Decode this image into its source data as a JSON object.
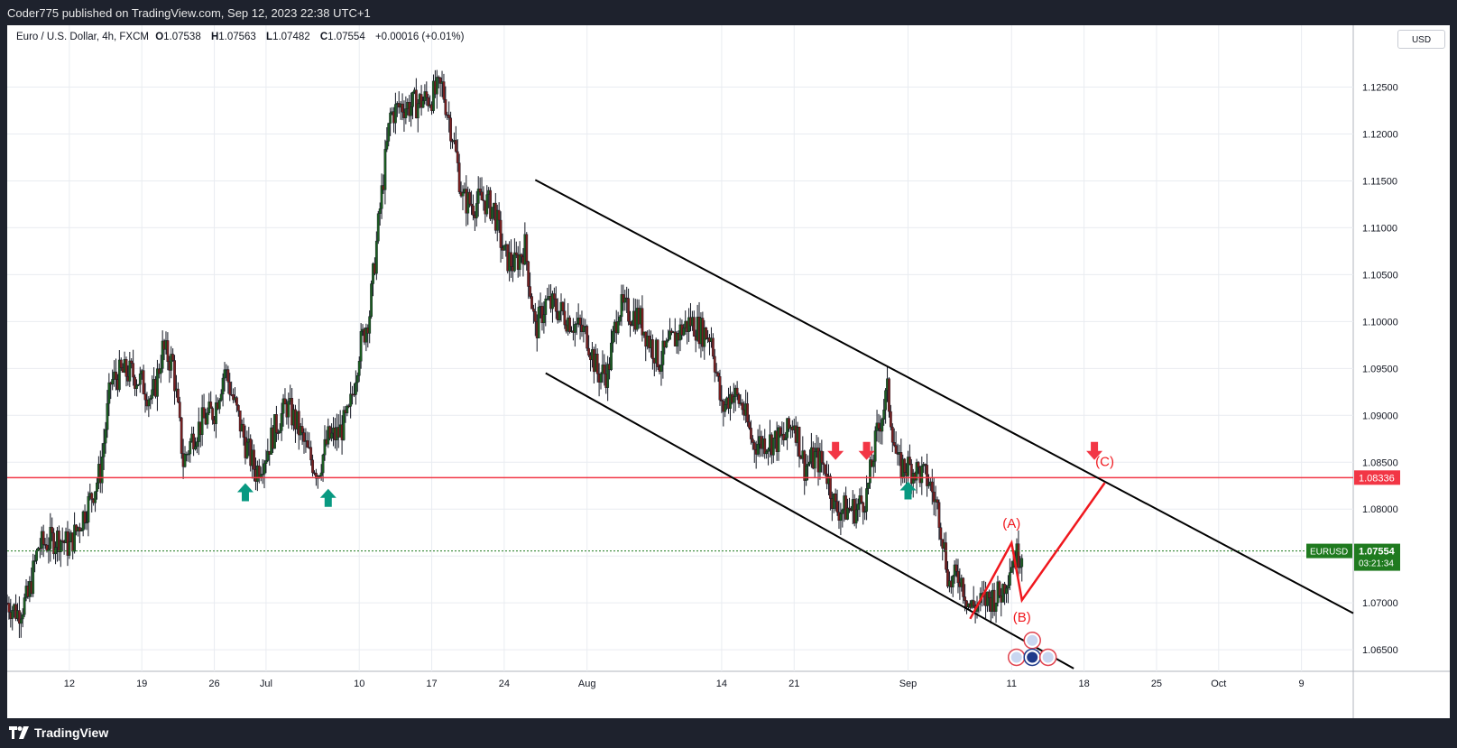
{
  "header": {
    "publisher_line": "Coder775 published on TradingView.com, Sep 12, 2023 22:38 UTC+1"
  },
  "legend": {
    "symbol": "Euro / U.S. Dollar, 4h, FXCM",
    "open_label": "O",
    "open": "1.07538",
    "high_label": "H",
    "high": "1.07563",
    "low_label": "L",
    "low": "1.07482",
    "close_label": "C",
    "close": "1.07554",
    "change": "+0.00016 (+0.01%)"
  },
  "currency_button": "USD",
  "footer": {
    "brand": "TradingView"
  },
  "colors": {
    "background": "#ffffff",
    "frame": "#1e222d",
    "grid": "#e9ecf1",
    "up_candle": "#1b5e20",
    "down_candle": "#7a1f1f",
    "support_line": "#f23645",
    "channel": "#000000",
    "wave": "#f0181e",
    "arrow_up": "#089981",
    "arrow_down": "#f23645",
    "price_badge": "#1f7a1f"
  },
  "chart_data": {
    "type": "candlestick",
    "title": "",
    "x_ticks": [
      "12",
      "19",
      "26",
      "Jul",
      "10",
      "17",
      "24",
      "Aug",
      "14",
      "21",
      "Sep",
      "11",
      "18",
      "25",
      "Oct",
      "9"
    ],
    "y_ticks": [
      "1.12500",
      "1.12000",
      "1.11500",
      "1.11000",
      "1.10500",
      "1.10000",
      "1.09500",
      "1.09000",
      "1.08500",
      "1.08000",
      "1.07500",
      "1.07000",
      "1.06500"
    ],
    "ylim": [
      1.0628,
      1.1289
    ],
    "x_range_days": [
      "2023-06-06",
      "2023-10-14"
    ],
    "close_path": [
      [
        "2023-06-06",
        1.07
      ],
      [
        "2023-06-07",
        1.069
      ],
      [
        "2023-06-08",
        1.0705
      ],
      [
        "2023-06-09",
        1.076
      ],
      [
        "2023-06-10",
        1.0765
      ],
      [
        "2023-06-11",
        1.077
      ],
      [
        "2023-06-12",
        1.076
      ],
      [
        "2023-06-13",
        1.0785
      ],
      [
        "2023-06-14",
        1.081
      ],
      [
        "2023-06-15",
        1.084
      ],
      [
        "2023-06-16",
        1.0935
      ],
      [
        "2023-06-17",
        1.0945
      ],
      [
        "2023-06-18",
        1.0945
      ],
      [
        "2023-06-19",
        1.0935
      ],
      [
        "2023-06-20",
        1.0915
      ],
      [
        "2023-06-21",
        1.097
      ],
      [
        "2023-06-22",
        1.0955
      ],
      [
        "2023-06-23",
        1.085
      ],
      [
        "2023-06-24",
        1.088
      ],
      [
        "2023-06-25",
        1.0895
      ],
      [
        "2023-06-26",
        1.0905
      ],
      [
        "2023-06-27",
        1.095
      ],
      [
        "2023-06-28",
        1.091
      ],
      [
        "2023-06-29",
        1.087
      ],
      [
        "2023-06-30",
        1.084
      ],
      [
        "2023-07-01",
        1.086
      ],
      [
        "2023-07-02",
        1.089
      ],
      [
        "2023-07-03",
        1.091
      ],
      [
        "2023-07-04",
        1.089
      ],
      [
        "2023-07-05",
        1.086
      ],
      [
        "2023-07-06",
        1.084
      ],
      [
        "2023-07-07",
        1.0875
      ],
      [
        "2023-07-08",
        1.088
      ],
      [
        "2023-07-09",
        1.09
      ],
      [
        "2023-07-10",
        1.097
      ],
      [
        "2023-07-11",
        1.101
      ],
      [
        "2023-07-12",
        1.112
      ],
      [
        "2023-07-13",
        1.122
      ],
      [
        "2023-07-14",
        1.123
      ],
      [
        "2023-07-15",
        1.123
      ],
      [
        "2023-07-16",
        1.1235
      ],
      [
        "2023-07-17",
        1.124
      ],
      [
        "2023-07-18",
        1.125
      ],
      [
        "2023-07-19",
        1.12
      ],
      [
        "2023-07-20",
        1.113
      ],
      [
        "2023-07-21",
        1.1125
      ],
      [
        "2023-07-22",
        1.113
      ],
      [
        "2023-07-23",
        1.112
      ],
      [
        "2023-07-24",
        1.107
      ],
      [
        "2023-07-25",
        1.106
      ],
      [
        "2023-07-26",
        1.108
      ],
      [
        "2023-07-27",
        1.099
      ],
      [
        "2023-07-28",
        1.102
      ],
      [
        "2023-07-29",
        1.1015
      ],
      [
        "2023-07-30",
        1.1005
      ],
      [
        "2023-07-31",
        1.0995
      ],
      [
        "2023-08-01",
        1.0985
      ],
      [
        "2023-08-02",
        1.0945
      ],
      [
        "2023-08-03",
        1.0945
      ],
      [
        "2023-08-04",
        1.1015
      ],
      [
        "2023-08-05",
        1.101
      ],
      [
        "2023-08-06",
        1.1005
      ],
      [
        "2023-08-07",
        1.098
      ],
      [
        "2023-08-08",
        1.0958
      ],
      [
        "2023-08-09",
        1.0975
      ],
      [
        "2023-08-10",
        1.099
      ],
      [
        "2023-08-11",
        1.1
      ],
      [
        "2023-08-12",
        1.099
      ],
      [
        "2023-08-13",
        1.0985
      ],
      [
        "2023-08-14",
        1.0905
      ],
      [
        "2023-08-15",
        1.0925
      ],
      [
        "2023-08-16",
        1.091
      ],
      [
        "2023-08-17",
        1.087
      ],
      [
        "2023-08-18",
        1.0872
      ],
      [
        "2023-08-19",
        1.0873
      ],
      [
        "2023-08-20",
        1.0874
      ],
      [
        "2023-08-21",
        1.0895
      ],
      [
        "2023-08-22",
        1.0845
      ],
      [
        "2023-08-23",
        1.0855
      ],
      [
        "2023-08-24",
        1.0845
      ],
      [
        "2023-08-25",
        1.08
      ],
      [
        "2023-08-26",
        1.08
      ],
      [
        "2023-08-27",
        1.08
      ],
      [
        "2023-08-28",
        1.0815
      ],
      [
        "2023-08-29",
        1.088
      ],
      [
        "2023-08-30",
        1.0925
      ],
      [
        "2023-08-31",
        1.0845
      ],
      [
        "2023-09-01",
        1.0845
      ],
      [
        "2023-09-02",
        1.084
      ],
      [
        "2023-09-03",
        1.083
      ],
      [
        "2023-09-04",
        1.0795
      ],
      [
        "2023-09-05",
        1.072
      ],
      [
        "2023-09-06",
        1.073
      ],
      [
        "2023-09-07",
        1.0695
      ],
      [
        "2023-09-08",
        1.07
      ],
      [
        "2023-09-09",
        1.0705
      ],
      [
        "2023-09-10",
        1.071
      ],
      [
        "2023-09-11",
        1.0745
      ],
      [
        "2023-09-12",
        1.0755
      ]
    ],
    "period_high": 1.1275,
    "period_low": 1.0662,
    "horizontal_levels": [
      {
        "price": 1.08336,
        "label": "1.08336",
        "color": "#f23645"
      },
      {
        "price": 1.07554,
        "label": "1.07554",
        "style": "dotted",
        "color": "#1f7a1f"
      }
    ],
    "price_badge": {
      "symbol": "EURUSD",
      "price": "1.07554",
      "countdown": "03:21:34"
    },
    "channel_lines": [
      {
        "from": [
          "2023-07-27",
          1.1151
        ],
        "to": [
          "2023-10-14",
          1.0689
        ]
      },
      {
        "from": [
          "2023-07-28",
          1.0945
        ],
        "to": [
          "2023-09-17",
          1.063
        ]
      }
    ],
    "wave_path": [
      [
        "2023-09-07",
        1.0683
      ],
      [
        "2023-09-11",
        1.0764
      ],
      [
        "2023-09-12",
        1.0703
      ],
      [
        "2023-09-20",
        1.0828
      ]
    ],
    "wave_labels": [
      {
        "text": "(A)",
        "date": "2023-09-11",
        "price": 1.078
      },
      {
        "text": "(B)",
        "date": "2023-09-12",
        "price": 1.068
      },
      {
        "text": "(C)",
        "date": "2023-09-20",
        "price": 1.0846
      }
    ],
    "arrows": [
      {
        "dir": "up",
        "date": "2023-06-29",
        "price": 1.0818
      },
      {
        "dir": "up",
        "date": "2023-07-07",
        "price": 1.0812
      },
      {
        "dir": "down",
        "date": "2023-08-25",
        "price": 1.0862
      },
      {
        "dir": "down",
        "date": "2023-08-28",
        "price": 1.0862
      },
      {
        "dir": "up",
        "date": "2023-09-01",
        "price": 1.082
      },
      {
        "dir": "down",
        "date": "2023-09-19",
        "price": 1.0862
      }
    ],
    "events": [
      {
        "date": "2023-09-13",
        "price": 1.066,
        "kind": "us-flag"
      },
      {
        "date": "2023-09-12",
        "price": 1.0642,
        "kind": "us-flag"
      },
      {
        "date": "2023-09-13",
        "price": 1.0642,
        "kind": "eu-flag"
      },
      {
        "date": "2023-09-14",
        "price": 1.0642,
        "kind": "us-flag"
      }
    ]
  }
}
